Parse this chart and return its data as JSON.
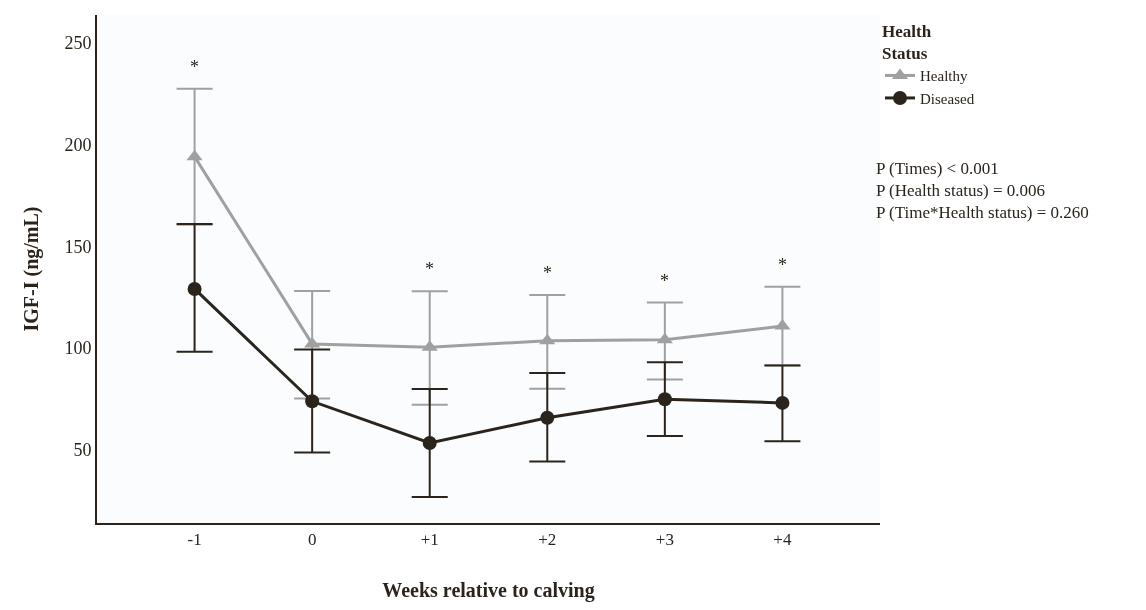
{
  "chart_data": {
    "type": "line",
    "xlabel": "Weeks relative to calving",
    "ylabel": "IGF-I (ng/mL)",
    "legend_title": "Health\nStatus",
    "categories": [
      "-1",
      "0",
      "+1",
      "+2",
      "+3",
      "+4"
    ],
    "series": [
      {
        "name": "Healthy",
        "color": "#a0a0a0",
        "marker": "triangle",
        "values": [
          194,
          102,
          100.3,
          103.6,
          104,
          110.8
        ],
        "errors": [
          [
            160.6,
            227.4
          ],
          [
            75.2,
            128
          ],
          [
            72.1,
            127.9
          ],
          [
            80,
            126
          ],
          [
            84.5,
            122.3
          ],
          [
            91.5,
            130.1
          ]
        ]
      },
      {
        "name": "Diseased",
        "color": "#2a241c",
        "marker": "circle",
        "values": [
          129,
          73.8,
          53.3,
          65.7,
          74.8,
          73
        ],
        "errors": [
          [
            98.1,
            160.9
          ],
          [
            48.7,
            99.3
          ],
          [
            26.8,
            79.8
          ],
          [
            44.2,
            87.7
          ],
          [
            56.7,
            93
          ],
          [
            54.2,
            91.4
          ]
        ]
      }
    ],
    "ylim": [
      14,
      263.6
    ],
    "yticks": [
      50,
      100,
      150,
      200,
      250
    ],
    "legend": "top right",
    "annotations": [
      {
        "text": "*",
        "x": "-1",
        "y": 227.4
      },
      {
        "text": "*",
        "x": "+1",
        "y": 127.9
      },
      {
        "text": "*",
        "x": "+2",
        "y": 126
      },
      {
        "text": "*",
        "x": "+3",
        "y": 122.3
      },
      {
        "text": "*",
        "x": "+4",
        "y": 130.1
      },
      "P (Times) < 0.001",
      "P (Health status) = 0.006",
      "P (Time*Health status) = 0.260"
    ]
  }
}
